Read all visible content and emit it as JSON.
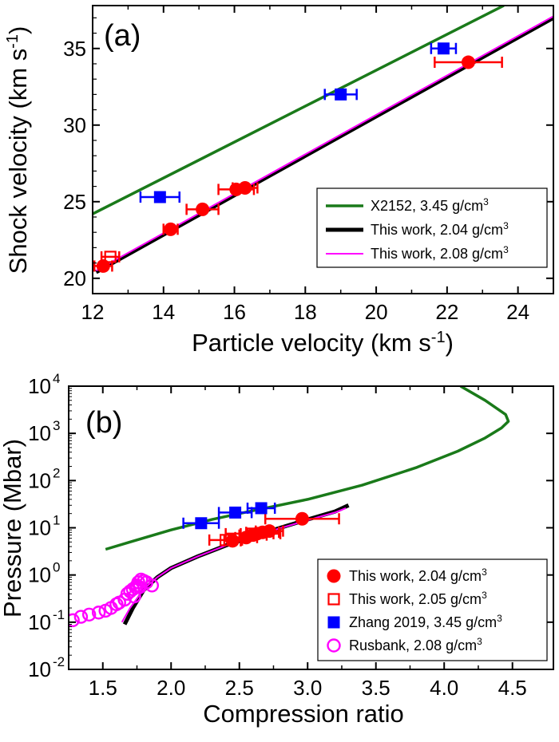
{
  "chart_data": [
    {
      "type": "scatter",
      "panel_label": "(a)",
      "xlabel": "Particle velocity (km s",
      "xlabel_sup": "-1",
      "xlabel_end": ")",
      "ylabel": "Shock velocity (km s",
      "ylabel_sup": "-1",
      "ylabel_end": ")",
      "xlim": [
        12,
        25
      ],
      "ylim": [
        19,
        37.8
      ],
      "xticks": [
        12,
        14,
        16,
        18,
        20,
        22,
        24
      ],
      "yticks": [
        20,
        25,
        30,
        35
      ],
      "grid": false,
      "legend_position": "bottom-right",
      "series": [
        {
          "name": "X2152, 3.45 g/cm",
          "name_sup": "3",
          "kind": "line",
          "color": "#1a7a1a",
          "x": [
            12,
            23.6
          ],
          "y": [
            24.2,
            37.8
          ]
        },
        {
          "name": "This work, 2.04 g/cm",
          "name_sup": "3",
          "kind": "line",
          "color": "#000000",
          "x": [
            12.1,
            25
          ],
          "y": [
            20.4,
            37.0
          ]
        },
        {
          "name": "This work, 2.08 g/cm",
          "name_sup": "3",
          "kind": "line",
          "color": "#ff00ff",
          "x": [
            12.1,
            25
          ],
          "y": [
            20.5,
            37.1
          ]
        },
        {
          "kind": "points",
          "marker": "circle-filled",
          "color": "#ff0000",
          "x": [
            12.3,
            14.2,
            15.1,
            16.05,
            16.3,
            22.6
          ],
          "y": [
            20.8,
            23.2,
            24.5,
            25.8,
            25.9,
            34.1
          ],
          "xerr": [
            0.25,
            0.2,
            0.45,
            0.5,
            0.35,
            0.95
          ]
        },
        {
          "kind": "points",
          "marker": "square-open",
          "color": "#ff0000",
          "x": [
            12.5
          ],
          "y": [
            21.4
          ],
          "xerr": [
            0.25
          ]
        },
        {
          "kind": "points",
          "marker": "square-filled",
          "color": "#0000ff",
          "x": [
            13.9,
            19.0,
            21.9
          ],
          "y": [
            25.3,
            32.0,
            35.0
          ],
          "xerr": [
            0.55,
            0.45,
            0.35
          ]
        }
      ]
    },
    {
      "type": "scatter",
      "panel_label": "(b)",
      "xlabel": "Compression ratio",
      "ylabel": "Pressure (Mbar)",
      "xlim": [
        1.25,
        4.8
      ],
      "ylim_log10": [
        -2,
        4
      ],
      "y_scale": "log",
      "xticks": [
        1.5,
        2.0,
        2.5,
        3.0,
        3.5,
        4.0,
        4.5
      ],
      "xtick_labels": [
        "1.5",
        "2.0",
        "2.5",
        "3.0",
        "3.5",
        "4.0",
        "4.5"
      ],
      "ytick_exponents": [
        -2,
        -1,
        0,
        1,
        2,
        3,
        4
      ],
      "ytick_base": "10",
      "grid": false,
      "legend_position": "bottom-right",
      "series": [
        {
          "kind": "line",
          "color": "#1a7a1a",
          "x": [
            1.52,
            1.7,
            2.0,
            2.3,
            2.6,
            3.0,
            3.4,
            3.8,
            4.1,
            4.3,
            4.42,
            4.47,
            4.45,
            4.3,
            4.12
          ],
          "y": [
            3.5,
            5.0,
            9.0,
            15,
            23,
            40,
            80,
            190,
            420,
            800,
            1300,
            1800,
            2500,
            5000,
            10000
          ]
        },
        {
          "kind": "line",
          "color": "#ff00ff",
          "x": [
            1.64,
            1.7,
            1.8,
            1.9,
            2.0,
            2.2,
            2.4,
            2.6,
            2.8,
            3.0,
            3.2,
            3.28
          ],
          "y": [
            0.1,
            0.2,
            0.5,
            0.9,
            1.4,
            2.5,
            4.2,
            6.5,
            9.8,
            14.5,
            21,
            26
          ]
        },
        {
          "kind": "line",
          "color": "#000000",
          "x": [
            1.66,
            1.72,
            1.8,
            1.9,
            2.0,
            2.2,
            2.4,
            2.6,
            2.8,
            3.0,
            3.2,
            3.3
          ],
          "y": [
            0.09,
            0.2,
            0.48,
            0.9,
            1.4,
            2.5,
            4.2,
            6.6,
            10,
            15,
            22,
            30
          ]
        },
        {
          "name": "This work, 2.04 g/cm",
          "name_sup": "3",
          "kind": "points",
          "marker": "circle-filled",
          "color": "#ff0000",
          "x": [
            2.45,
            2.55,
            2.6,
            2.63,
            2.67,
            2.72,
            2.96
          ],
          "y": [
            5.3,
            6.2,
            7.0,
            7.5,
            8.0,
            8.5,
            15.5
          ],
          "xerr": [
            0.06,
            0.08,
            0.1,
            0.12,
            0.12,
            0.1,
            0.27
          ]
        },
        {
          "name": "This work, 2.05 g/cm",
          "name_sup": "3",
          "kind": "points",
          "marker": "square-open",
          "color": "#ff0000",
          "x": [
            2.4,
            2.6
          ],
          "y": [
            5.5,
            7.5
          ],
          "xerr": [
            0.12,
            0.2
          ]
        },
        {
          "name": "Zhang 2019, 3.45 g/cm",
          "name_sup": "3",
          "kind": "points",
          "marker": "square-filled",
          "color": "#0000ff",
          "x": [
            2.22,
            2.47,
            2.66
          ],
          "y": [
            12.5,
            21,
            26
          ],
          "xerr": [
            0.13,
            0.12,
            0.1
          ]
        },
        {
          "name": "Rusbank, 2.08 g/cm",
          "name_sup": "3",
          "kind": "points",
          "marker": "circle-open",
          "color": "#ff00ff",
          "x": [
            1.28,
            1.34,
            1.4,
            1.47,
            1.52,
            1.56,
            1.6,
            1.62,
            1.66,
            1.68,
            1.7,
            1.72,
            1.73,
            1.74,
            1.75,
            1.76,
            1.77,
            1.78,
            1.8,
            1.82,
            1.86
          ],
          "y": [
            0.11,
            0.13,
            0.145,
            0.16,
            0.175,
            0.2,
            0.24,
            0.26,
            0.3,
            0.4,
            0.45,
            0.5,
            0.35,
            0.55,
            0.6,
            0.7,
            0.55,
            0.8,
            0.75,
            0.7,
            0.6
          ]
        }
      ]
    }
  ]
}
